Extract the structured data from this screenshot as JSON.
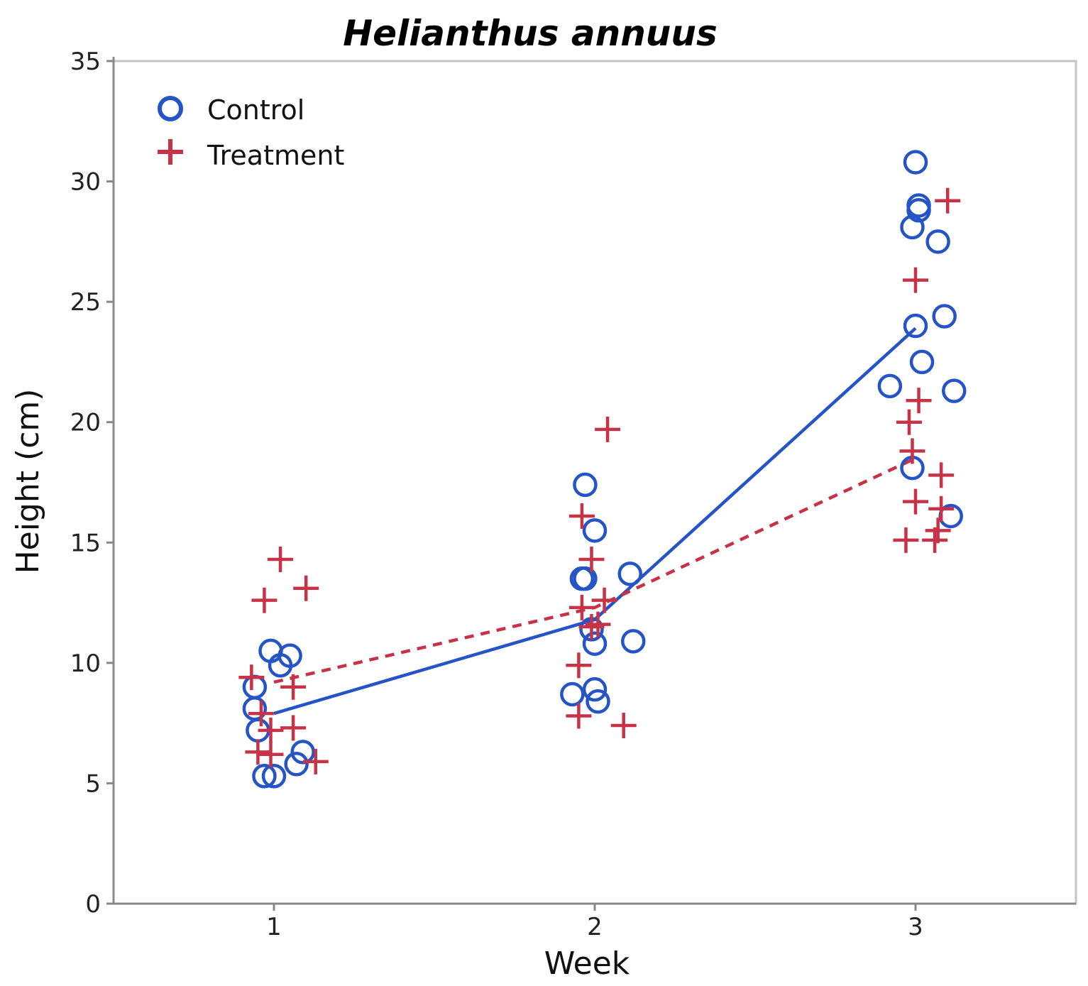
{
  "chart_data": {
    "type": "scatter",
    "title": "Helianthus annuus",
    "xlabel": "Week",
    "ylabel": "Height (cm)",
    "xlim": [
      0.5,
      3.5
    ],
    "ylim": [
      0,
      35
    ],
    "x_ticks": [
      1,
      2,
      3
    ],
    "x_tick_labels": [
      "1",
      "2",
      "3"
    ],
    "y_ticks": [
      0,
      5,
      10,
      15,
      20,
      25,
      30,
      35
    ],
    "y_tick_labels": [
      "0",
      "5",
      "10",
      "15",
      "20",
      "25",
      "30",
      "35"
    ],
    "grid": false,
    "legend_position": "top-left",
    "series": [
      {
        "name": "Control",
        "marker": "circle",
        "line_style": "solid",
        "color": "#2554c7",
        "points": [
          {
            "x": 0.94,
            "y": 9.0
          },
          {
            "x": 0.94,
            "y": 8.1
          },
          {
            "x": 0.95,
            "y": 7.2
          },
          {
            "x": 0.97,
            "y": 5.3
          },
          {
            "x": 1.0,
            "y": 5.3
          },
          {
            "x": 0.99,
            "y": 10.5
          },
          {
            "x": 1.02,
            "y": 9.9
          },
          {
            "x": 1.05,
            "y": 10.3
          },
          {
            "x": 1.07,
            "y": 5.8
          },
          {
            "x": 1.09,
            "y": 6.3
          },
          {
            "x": 1.93,
            "y": 8.7
          },
          {
            "x": 1.96,
            "y": 13.5
          },
          {
            "x": 1.97,
            "y": 13.5
          },
          {
            "x": 1.97,
            "y": 17.4
          },
          {
            "x": 1.99,
            "y": 11.4
          },
          {
            "x": 2.0,
            "y": 10.8
          },
          {
            "x": 2.0,
            "y": 15.5
          },
          {
            "x": 2.0,
            "y": 8.9
          },
          {
            "x": 2.01,
            "y": 8.4
          },
          {
            "x": 2.11,
            "y": 13.7
          },
          {
            "x": 2.12,
            "y": 10.9
          },
          {
            "x": 2.92,
            "y": 21.5
          },
          {
            "x": 2.99,
            "y": 28.1
          },
          {
            "x": 3.0,
            "y": 30.8
          },
          {
            "x": 2.99,
            "y": 18.1
          },
          {
            "x": 3.0,
            "y": 24.0
          },
          {
            "x": 3.01,
            "y": 29.0
          },
          {
            "x": 3.01,
            "y": 28.8
          },
          {
            "x": 3.02,
            "y": 22.5
          },
          {
            "x": 3.07,
            "y": 27.5
          },
          {
            "x": 3.09,
            "y": 24.4
          },
          {
            "x": 3.12,
            "y": 21.3
          },
          {
            "x": 3.11,
            "y": 16.1
          }
        ],
        "means": [
          {
            "x": 1,
            "y": 7.9
          },
          {
            "x": 2,
            "y": 11.8
          },
          {
            "x": 3,
            "y": 23.9
          }
        ]
      },
      {
        "name": "Treatment",
        "marker": "plus",
        "line_style": "dashed",
        "color": "#c83246",
        "points": [
          {
            "x": 0.93,
            "y": 9.4
          },
          {
            "x": 0.95,
            "y": 6.3
          },
          {
            "x": 0.96,
            "y": 7.9
          },
          {
            "x": 0.97,
            "y": 12.6
          },
          {
            "x": 0.99,
            "y": 6.2
          },
          {
            "x": 0.99,
            "y": 7.2
          },
          {
            "x": 1.02,
            "y": 14.3
          },
          {
            "x": 1.06,
            "y": 7.3
          },
          {
            "x": 1.06,
            "y": 9.0
          },
          {
            "x": 1.1,
            "y": 13.1
          },
          {
            "x": 1.13,
            "y": 5.9
          },
          {
            "x": 1.95,
            "y": 9.9
          },
          {
            "x": 1.95,
            "y": 7.8
          },
          {
            "x": 1.96,
            "y": 16.1
          },
          {
            "x": 1.96,
            "y": 12.3
          },
          {
            "x": 1.99,
            "y": 11.5
          },
          {
            "x": 1.99,
            "y": 14.3
          },
          {
            "x": 2.01,
            "y": 11.6
          },
          {
            "x": 2.03,
            "y": 12.6
          },
          {
            "x": 2.04,
            "y": 19.7
          },
          {
            "x": 2.09,
            "y": 7.4
          },
          {
            "x": 2.97,
            "y": 15.1
          },
          {
            "x": 2.98,
            "y": 20.0
          },
          {
            "x": 2.99,
            "y": 18.8
          },
          {
            "x": 3.0,
            "y": 16.7
          },
          {
            "x": 3.0,
            "y": 25.9
          },
          {
            "x": 3.01,
            "y": 20.9
          },
          {
            "x": 3.06,
            "y": 15.1
          },
          {
            "x": 3.08,
            "y": 17.8
          },
          {
            "x": 3.08,
            "y": 16.4
          },
          {
            "x": 3.07,
            "y": 15.5
          },
          {
            "x": 3.1,
            "y": 29.2
          }
        ],
        "means": [
          {
            "x": 1,
            "y": 9.2
          },
          {
            "x": 2,
            "y": 12.3
          },
          {
            "x": 3,
            "y": 18.5
          }
        ]
      }
    ]
  }
}
